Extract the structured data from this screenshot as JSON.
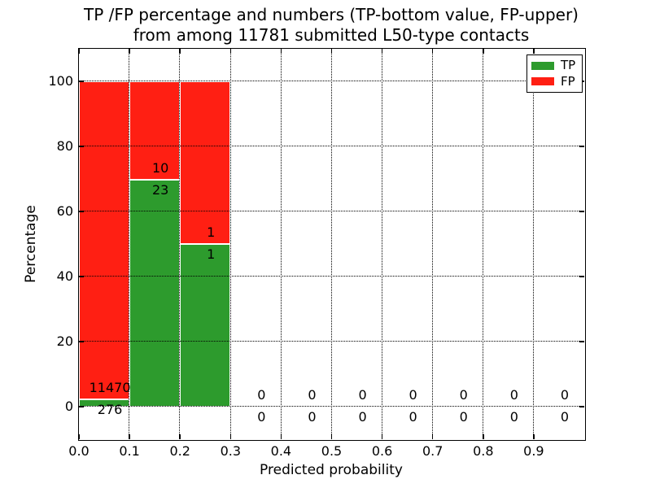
{
  "figure": {
    "title_line1": "TP /FP percentage and numbers (TP-bottom value, FP-upper)",
    "title_line2": "from among 11781 submitted L50-type contacts"
  },
  "chart_data": {
    "type": "bar",
    "stacked": true,
    "title": "TP /FP percentage and numbers (TP-bottom value, FP-upper) from among 11781 submitted L50-type contacts",
    "xlabel": "Predicted probability",
    "ylabel": "Percentage",
    "total_submitted": 11781,
    "xlim": [
      0.0,
      1.0
    ],
    "ylim": [
      -10,
      110
    ],
    "grid": "dotted",
    "legend_position": "upper right",
    "bin_edges": [
      0.0,
      0.1,
      0.2,
      0.3,
      0.4,
      0.5,
      0.6,
      0.7,
      0.8,
      0.9,
      1.0
    ],
    "xticks": [
      "0.0",
      "0.1",
      "0.2",
      "0.3",
      "0.4",
      "0.5",
      "0.6",
      "0.7",
      "0.8",
      "0.9"
    ],
    "yticks": [
      "0",
      "20",
      "40",
      "60",
      "80",
      "100"
    ],
    "series": [
      {
        "name": "TP",
        "color": "#2d9b2d",
        "counts": [
          276,
          23,
          1,
          0,
          0,
          0,
          0,
          0,
          0,
          0
        ],
        "percents": [
          2.35,
          69.7,
          50.0,
          0,
          0,
          0,
          0,
          0,
          0,
          0
        ]
      },
      {
        "name": "FP",
        "color": "#ff1f13",
        "counts": [
          11470,
          10,
          1,
          0,
          0,
          0,
          0,
          0,
          0,
          0
        ],
        "percents": [
          97.65,
          30.3,
          50.0,
          0,
          0,
          0,
          0,
          0,
          0,
          0
        ]
      }
    ]
  },
  "colors": {
    "tp": "#2d9b2d",
    "fp": "#ff1f13",
    "grid": "#000000",
    "text": "#000000",
    "background": "#ffffff"
  }
}
